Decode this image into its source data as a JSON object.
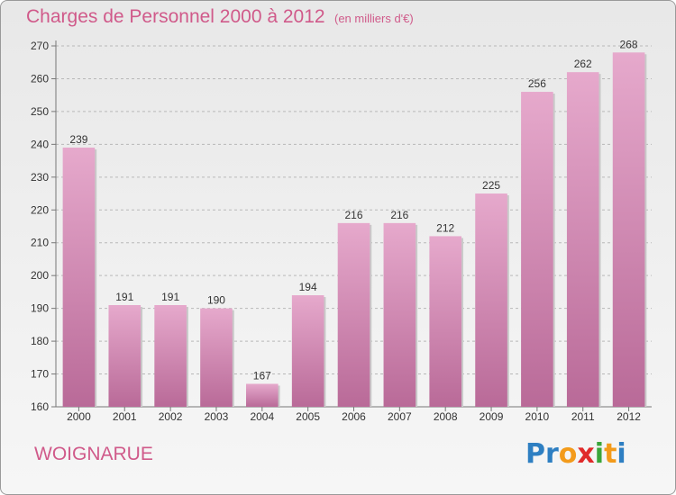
{
  "title": "Charges de Personnel 2000 à 2012",
  "subtitle": "(en milliers d'€)",
  "town": "WOIGNARUE",
  "logo": {
    "text": "Proxiti",
    "letters": [
      {
        "ch": "P",
        "color": "#2e7fc2"
      },
      {
        "ch": "r",
        "color": "#2e7fc2"
      },
      {
        "ch": "o",
        "color": "#f39b1b"
      },
      {
        "ch": "x",
        "color": "#e02a2a"
      },
      {
        "ch": "i",
        "color": "#3aa53a"
      },
      {
        "ch": "t",
        "color": "#f39b1b"
      },
      {
        "ch": "i",
        "color": "#2e7fc2"
      }
    ]
  },
  "colors": {
    "accent": "#d05a8a",
    "bar_top": "#e6a9cc",
    "bar_bottom": "#b96a98"
  },
  "chart_data": {
    "type": "bar",
    "title": "Charges de Personnel 2000 à 2012",
    "subtitle": "(en milliers d'€)",
    "xlabel": "",
    "ylabel": "",
    "categories": [
      "2000",
      "2001",
      "2002",
      "2003",
      "2004",
      "2005",
      "2006",
      "2007",
      "2008",
      "2009",
      "2010",
      "2011",
      "2012"
    ],
    "values": [
      239,
      191,
      191,
      190,
      167,
      194,
      216,
      216,
      212,
      225,
      256,
      262,
      268
    ],
    "ylim": [
      160,
      270
    ],
    "yticks": [
      160,
      170,
      180,
      190,
      200,
      210,
      220,
      230,
      240,
      250,
      260,
      270
    ],
    "grid": true,
    "grid_style": "dashed horizontal",
    "legend": "none"
  }
}
